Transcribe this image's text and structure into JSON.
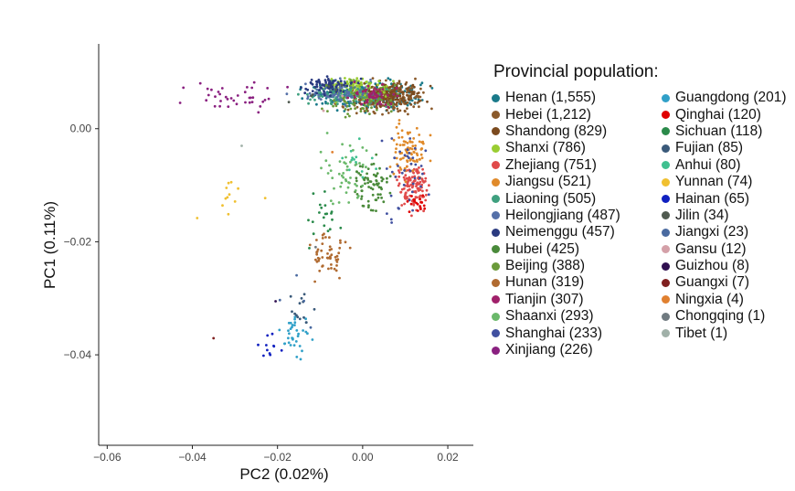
{
  "chart_data": {
    "type": "scatter",
    "title": "",
    "xlabel": "PC2 (0.02%)",
    "ylabel": "PC1 (0.11%)",
    "xlim": [
      -0.062,
      0.026
    ],
    "ylim": [
      -0.056,
      0.015
    ],
    "xticks": [
      -0.06,
      -0.04,
      -0.02,
      0.0,
      0.02
    ],
    "xtick_labels": [
      "−0.06",
      "−0.04",
      "−0.02",
      "0.00",
      "0.02"
    ],
    "yticks": [
      0.0,
      -0.02,
      -0.04
    ],
    "ytick_labels": [
      "0.00",
      "−0.02",
      "−0.04"
    ],
    "grid": false,
    "legend": {
      "title": "Provincial population:",
      "placement": "right"
    },
    "series": [
      {
        "name": "Henan (1,555)",
        "count": 1555,
        "color": "#1a7a8a",
        "cx": 0.001,
        "cy": 0.006,
        "sx": 0.012,
        "sy": 0.0022
      },
      {
        "name": "Hebei (1,212)",
        "count": 1212,
        "color": "#8b5a2b",
        "cx": 0.006,
        "cy": 0.0055,
        "sx": 0.009,
        "sy": 0.0025
      },
      {
        "name": "Shandong (829)",
        "count": 829,
        "color": "#7b4a1e",
        "cx": 0.005,
        "cy": 0.006,
        "sx": 0.008,
        "sy": 0.0022
      },
      {
        "name": "Shanxi (786)",
        "count": 786,
        "color": "#9acd32",
        "cx": -0.001,
        "cy": 0.007,
        "sx": 0.007,
        "sy": 0.0018
      },
      {
        "name": "Zhejiang (751)",
        "count": 751,
        "color": "#e04a4a",
        "cx": 0.012,
        "cy": -0.01,
        "sx": 0.0035,
        "sy": 0.004
      },
      {
        "name": "Jiangsu (521)",
        "count": 521,
        "color": "#e08a2a",
        "cx": 0.011,
        "cy": -0.004,
        "sx": 0.004,
        "sy": 0.004
      },
      {
        "name": "Liaoning (505)",
        "count": 505,
        "color": "#3fa07f",
        "cx": -0.004,
        "cy": 0.006,
        "sx": 0.009,
        "sy": 0.002
      },
      {
        "name": "Heilongjiang (487)",
        "count": 487,
        "color": "#5570a8",
        "cx": -0.006,
        "cy": 0.0065,
        "sx": 0.009,
        "sy": 0.002
      },
      {
        "name": "Neimenggu (457)",
        "count": 457,
        "color": "#2a3a80",
        "cx": -0.008,
        "cy": 0.0075,
        "sx": 0.006,
        "sy": 0.0015
      },
      {
        "name": "Hubei (425)",
        "count": 425,
        "color": "#4a8a3a",
        "cx": 0.002,
        "cy": -0.01,
        "sx": 0.004,
        "sy": 0.004
      },
      {
        "name": "Beijing (388)",
        "count": 388,
        "color": "#6a9a3a",
        "cx": 0.0,
        "cy": 0.005,
        "sx": 0.008,
        "sy": 0.003
      },
      {
        "name": "Hunan (319)",
        "count": 319,
        "color": "#b06a30",
        "cx": -0.008,
        "cy": -0.022,
        "sx": 0.004,
        "sy": 0.004
      },
      {
        "name": "Tianjin (307)",
        "count": 307,
        "color": "#a0206a",
        "cx": 0.003,
        "cy": 0.006,
        "sx": 0.006,
        "sy": 0.002
      },
      {
        "name": "Shaanxi (293)",
        "count": 293,
        "color": "#6ab86a",
        "cx": -0.004,
        "cy": -0.008,
        "sx": 0.005,
        "sy": 0.006
      },
      {
        "name": "Shanghai (233)",
        "count": 233,
        "color": "#4050a0",
        "cx": 0.01,
        "cy": -0.008,
        "sx": 0.006,
        "sy": 0.008
      },
      {
        "name": "Xinjiang (226)",
        "count": 226,
        "color": "#8a2080",
        "cx": -0.03,
        "cy": 0.006,
        "sx": 0.012,
        "sy": 0.0025
      },
      {
        "name": "Guangdong (201)",
        "count": 201,
        "color": "#30a0c8",
        "cx": -0.016,
        "cy": -0.036,
        "sx": 0.004,
        "sy": 0.004
      },
      {
        "name": "Qinghai (120)",
        "count": 120,
        "color": "#e00000",
        "cx": 0.013,
        "cy": -0.013,
        "sx": 0.003,
        "sy": 0.002
      },
      {
        "name": "Sichuan (118)",
        "count": 118,
        "color": "#2a8a4a",
        "cx": -0.009,
        "cy": -0.016,
        "sx": 0.004,
        "sy": 0.004
      },
      {
        "name": "Fujian (85)",
        "count": 85,
        "color": "#3a5a7a",
        "cx": -0.014,
        "cy": -0.032,
        "sx": 0.004,
        "sy": 0.004
      },
      {
        "name": "Anhui (80)",
        "count": 80,
        "color": "#40c090",
        "cx": -0.002,
        "cy": -0.006,
        "sx": 0.005,
        "sy": 0.005
      },
      {
        "name": "Yunnan (74)",
        "count": 74,
        "color": "#f0c030",
        "cx": -0.03,
        "cy": -0.012,
        "sx": 0.008,
        "sy": 0.005
      },
      {
        "name": "Hainan (65)",
        "count": 65,
        "color": "#1020c0",
        "cx": -0.022,
        "cy": -0.039,
        "sx": 0.003,
        "sy": 0.003
      },
      {
        "name": "Jilin (34)",
        "count": 34,
        "color": "#505a50",
        "cx": -0.01,
        "cy": 0.006,
        "sx": 0.008,
        "sy": 0.002
      },
      {
        "name": "Jiangxi (23)",
        "count": 23,
        "color": "#4a6aa0",
        "cx": -0.014,
        "cy": -0.03,
        "sx": 0.005,
        "sy": 0.005
      },
      {
        "name": "Gansu (12)",
        "count": 12,
        "color": "#d4a0a8",
        "cx": -0.006,
        "cy": 0.004,
        "sx": 0.004,
        "sy": 0.003
      },
      {
        "name": "Guizhou (8)",
        "count": 8,
        "color": "#301050",
        "cx": -0.02,
        "cy": -0.03,
        "sx": 0.006,
        "sy": 0.006
      },
      {
        "name": "Guangxi (7)",
        "count": 7,
        "color": "#802020",
        "cx": -0.03,
        "cy": -0.038,
        "sx": 0.006,
        "sy": 0.005
      },
      {
        "name": "Ningxia (4)",
        "count": 4,
        "color": "#e08030",
        "cx": -0.004,
        "cy": -0.004,
        "sx": 0.004,
        "sy": 0.004
      },
      {
        "name": "Chongqing (1)",
        "count": 1,
        "color": "#707a80",
        "cx": -0.01,
        "cy": -0.02,
        "sx": 0.001,
        "sy": 0.001
      },
      {
        "name": "Tibet (1)",
        "count": 1,
        "color": "#a0b0a8",
        "cx": -0.028,
        "cy": -0.002,
        "sx": 0.001,
        "sy": 0.001
      }
    ]
  }
}
